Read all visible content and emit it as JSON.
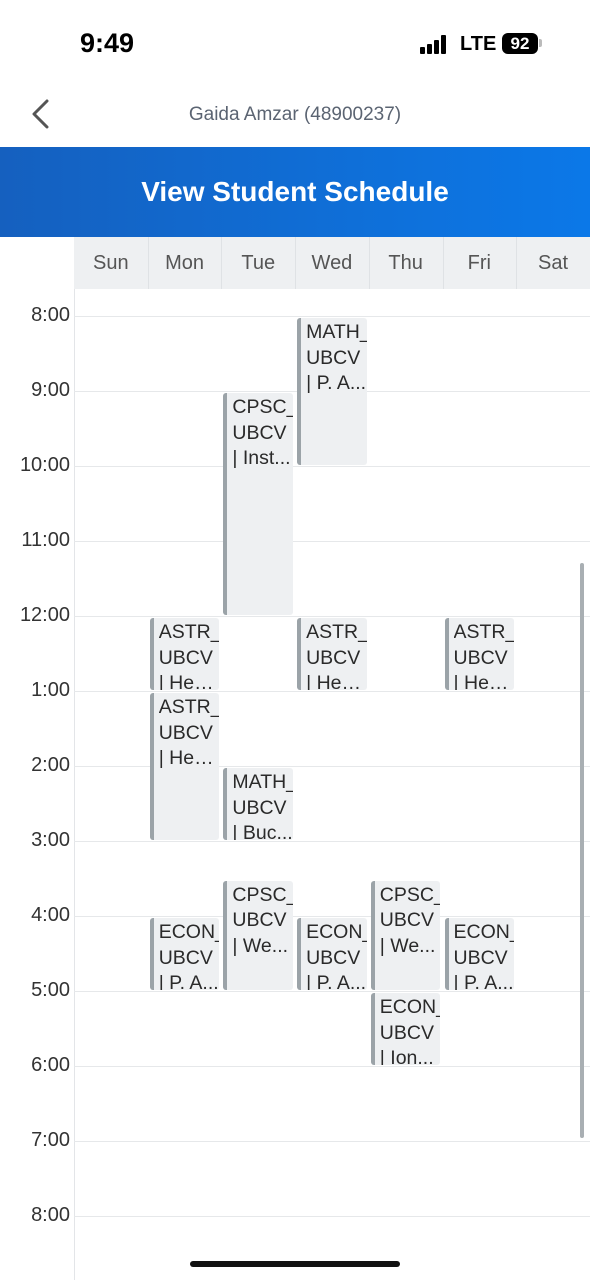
{
  "status": {
    "time": "9:49",
    "network": "LTE",
    "battery": "92"
  },
  "nav": {
    "title": "Gaida Amzar (48900237)",
    "back_icon": "chevron-left-icon"
  },
  "header": {
    "title": "View Student Schedule"
  },
  "days": [
    "Sun",
    "Mon",
    "Tue",
    "Wed",
    "Thu",
    "Fri",
    "Sat"
  ],
  "times": [
    "8:00",
    "9:00",
    "10:00",
    "11:00",
    "12:00",
    "1:00",
    "2:00",
    "3:00",
    "4:00",
    "5:00",
    "6:00",
    "7:00",
    "8:00"
  ],
  "events": [
    {
      "day": 3,
      "start": 8.0,
      "end": 10.0,
      "lines": [
        "MATH_",
        "UBCV",
        "| P. A..."
      ]
    },
    {
      "day": 2,
      "start": 9.0,
      "end": 12.0,
      "lines": [
        "CPSC_",
        "UBCV",
        "| Inst..."
      ]
    },
    {
      "day": 1,
      "start": 12.0,
      "end": 13.0,
      "lines": [
        "ASTR_",
        "UBCV",
        "| Hen..."
      ]
    },
    {
      "day": 3,
      "start": 12.0,
      "end": 13.0,
      "lines": [
        "ASTR_",
        "UBCV",
        "| Hen..."
      ]
    },
    {
      "day": 5,
      "start": 12.0,
      "end": 13.0,
      "lines": [
        "ASTR_",
        "UBCV",
        "| Hen..."
      ]
    },
    {
      "day": 1,
      "start": 13.0,
      "end": 15.0,
      "lines": [
        "ASTR_",
        "UBCV",
        "| Hen..."
      ]
    },
    {
      "day": 2,
      "start": 14.0,
      "end": 15.0,
      "lines": [
        "MATH_",
        "UBCV",
        "| Buc..."
      ]
    },
    {
      "day": 2,
      "start": 15.5,
      "end": 17.0,
      "lines": [
        "CPSC_",
        "UBCV",
        "| We..."
      ]
    },
    {
      "day": 4,
      "start": 15.5,
      "end": 17.0,
      "lines": [
        "CPSC_",
        "UBCV",
        "| We..."
      ]
    },
    {
      "day": 1,
      "start": 16.0,
      "end": 17.0,
      "lines": [
        "ECON_",
        "UBCV",
        "| P. A..."
      ]
    },
    {
      "day": 3,
      "start": 16.0,
      "end": 17.0,
      "lines": [
        "ECON_",
        "UBCV",
        "| P. A..."
      ]
    },
    {
      "day": 5,
      "start": 16.0,
      "end": 17.0,
      "lines": [
        "ECON_",
        "UBCV",
        "| P. A..."
      ]
    },
    {
      "day": 4,
      "start": 17.0,
      "end": 18.0,
      "lines": [
        "ECON_",
        "UBCV",
        "| Ion..."
      ]
    }
  ]
}
